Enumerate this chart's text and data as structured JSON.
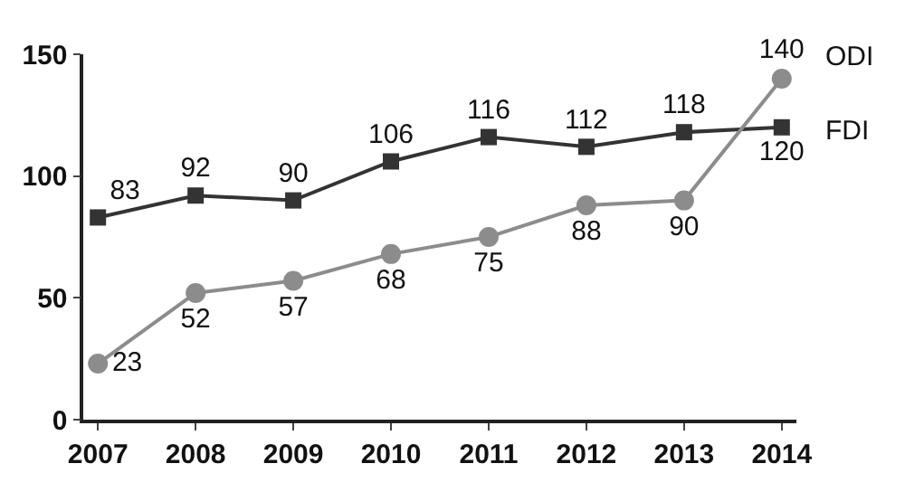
{
  "chart_data": {
    "type": "line",
    "categories": [
      "2007",
      "2008",
      "2009",
      "2010",
      "2011",
      "2012",
      "2013",
      "2014"
    ],
    "series": [
      {
        "name": "FDI",
        "color": "#333333",
        "marker": "square",
        "values": [
          83,
          92,
          90,
          106,
          116,
          112,
          118,
          120
        ]
      },
      {
        "name": "ODI",
        "color": "#8c8c8c",
        "marker": "circle",
        "values": [
          23,
          52,
          57,
          68,
          75,
          88,
          90,
          140
        ]
      }
    ],
    "ylim": [
      0,
      150
    ],
    "yticks": [
      0,
      50,
      100,
      150
    ],
    "legend": false,
    "data_labels": true
  }
}
